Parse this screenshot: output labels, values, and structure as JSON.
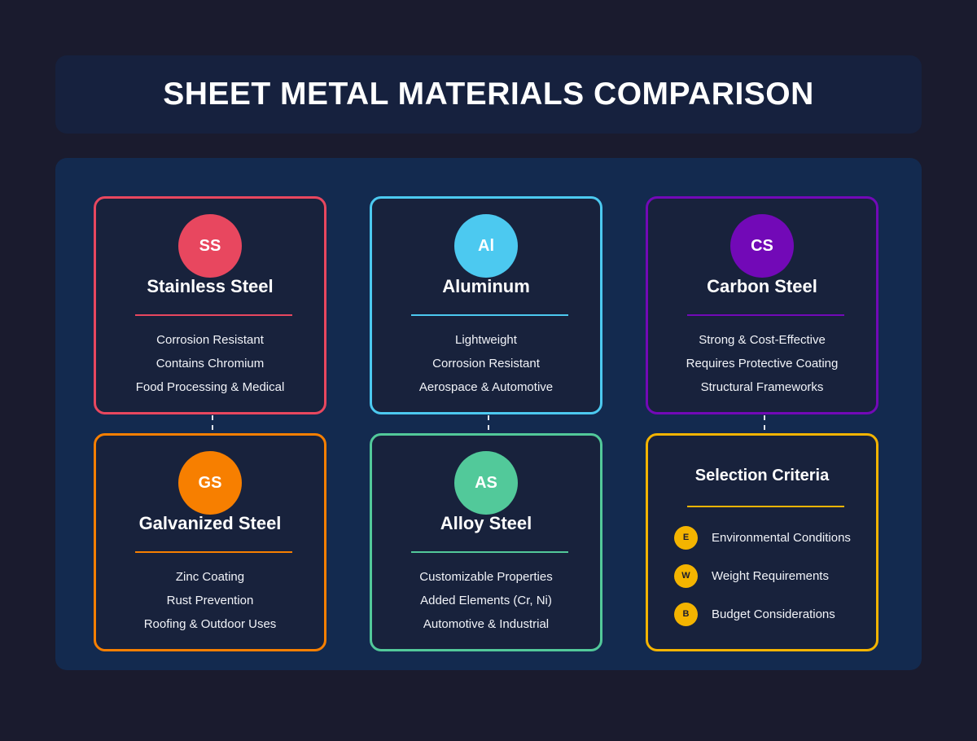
{
  "title": "SHEET METAL MATERIALS COMPARISON",
  "materials": [
    {
      "abbr": "SS",
      "name": "Stainless Steel",
      "color": "#e8475f",
      "features": [
        "Corrosion Resistant",
        "Contains Chromium",
        "Food Processing & Medical"
      ]
    },
    {
      "abbr": "Al",
      "name": "Aluminum",
      "color": "#4cc9f0",
      "features": [
        "Lightweight",
        "Corrosion Resistant",
        "Aerospace & Automotive"
      ]
    },
    {
      "abbr": "CS",
      "name": "Carbon Steel",
      "color": "#7209b7",
      "features": [
        "Strong & Cost-Effective",
        "Requires Protective Coating",
        "Structural Frameworks"
      ]
    },
    {
      "abbr": "GS",
      "name": "Galvanized Steel",
      "color": "#f77f00",
      "features": [
        "Zinc Coating",
        "Rust Prevention",
        "Roofing & Outdoor Uses"
      ]
    },
    {
      "abbr": "AS",
      "name": "Alloy Steel",
      "color": "#52c99a",
      "features": [
        "Customizable Properties",
        "Added Elements (Cr, Ni)",
        "Automotive & Industrial"
      ]
    }
  ],
  "criteria": {
    "title": "Selection Criteria",
    "color": "#f4b400",
    "items": [
      {
        "letter": "E",
        "label": "Environmental Conditions"
      },
      {
        "letter": "W",
        "label": "Weight Requirements"
      },
      {
        "letter": "B",
        "label": "Budget Considerations"
      }
    ]
  }
}
